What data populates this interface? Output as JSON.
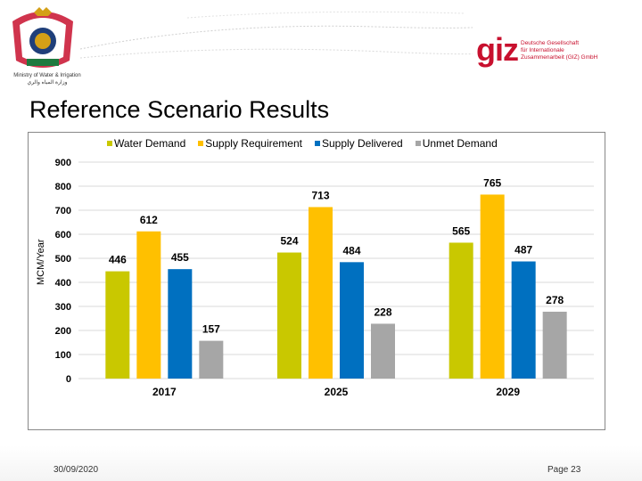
{
  "header": {
    "ministry_en": "Ministry of Water & Irrigation",
    "ministry_ar": "وزارة المياه والري",
    "giz_logo": "giz",
    "giz_lines": [
      "Deutsche Gesellschaft",
      "für Internationale",
      "Zusammenarbeit (GIZ) GmbH"
    ]
  },
  "title": "Reference Scenario Results",
  "chart_data": {
    "type": "bar",
    "categories": [
      "2017",
      "2025",
      "2029"
    ],
    "series": [
      {
        "name": "Water Demand",
        "color": "#c9c800",
        "values": [
          446,
          524,
          565
        ]
      },
      {
        "name": "Supply Requirement",
        "color": "#ffc000",
        "values": [
          612,
          713,
          765
        ]
      },
      {
        "name": "Supply Delivered",
        "color": "#0070c0",
        "values": [
          455,
          484,
          487
        ]
      },
      {
        "name": "Unmet Demand",
        "color": "#a6a6a6",
        "values": [
          157,
          228,
          278
        ]
      }
    ],
    "ylabel": "MCM/Year",
    "ylim": [
      0,
      900
    ],
    "yticks": [
      "0",
      "100",
      "200",
      "300",
      "400",
      "500",
      "600",
      "700",
      "800",
      "900"
    ],
    "grid": true,
    "legend": "top"
  },
  "footer": {
    "date": "30/09/2020",
    "page": "Page 23"
  }
}
